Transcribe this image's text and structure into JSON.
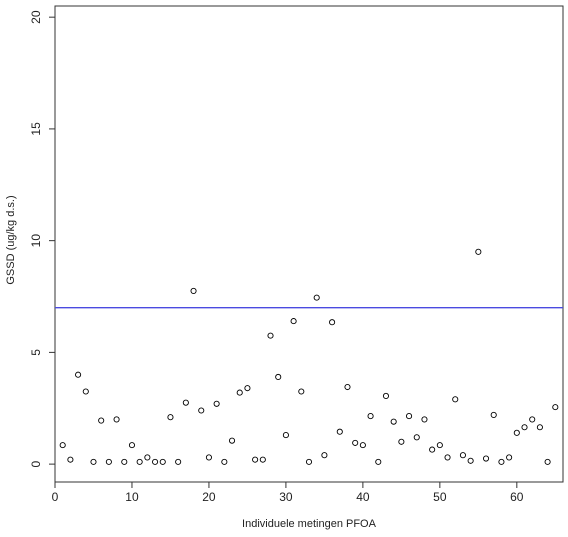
{
  "chart_data": {
    "type": "scatter",
    "xlabel": "Individuele metingen PFOA",
    "ylabel": "GSSD (ug/kg d.s.)",
    "xlim": [
      0,
      66
    ],
    "ylim": [
      -0.8,
      20.5
    ],
    "x_ticks": [
      0,
      10,
      20,
      30,
      40,
      50,
      60
    ],
    "y_ticks": [
      0,
      5,
      10,
      15,
      20
    ],
    "grid": false,
    "point_color": "#000000",
    "reference_line": {
      "y": 7.0,
      "color": "#4a4ae0"
    },
    "points": [
      {
        "x": 1,
        "y": 0.85
      },
      {
        "x": 2,
        "y": 0.2
      },
      {
        "x": 3,
        "y": 4.0
      },
      {
        "x": 4,
        "y": 3.25
      },
      {
        "x": 5,
        "y": 0.1
      },
      {
        "x": 6,
        "y": 1.95
      },
      {
        "x": 7,
        "y": 0.1
      },
      {
        "x": 8,
        "y": 2.0
      },
      {
        "x": 9,
        "y": 0.1
      },
      {
        "x": 10,
        "y": 0.85
      },
      {
        "x": 11,
        "y": 0.1
      },
      {
        "x": 12,
        "y": 0.3
      },
      {
        "x": 13,
        "y": 0.1
      },
      {
        "x": 14,
        "y": 0.1
      },
      {
        "x": 15,
        "y": 2.1
      },
      {
        "x": 16,
        "y": 0.1
      },
      {
        "x": 17,
        "y": 2.75
      },
      {
        "x": 18,
        "y": 7.75
      },
      {
        "x": 19,
        "y": 2.4
      },
      {
        "x": 20,
        "y": 0.3
      },
      {
        "x": 21,
        "y": 2.7
      },
      {
        "x": 22,
        "y": 0.1
      },
      {
        "x": 23,
        "y": 1.05
      },
      {
        "x": 24,
        "y": 3.2
      },
      {
        "x": 25,
        "y": 3.4
      },
      {
        "x": 26,
        "y": 0.2
      },
      {
        "x": 27,
        "y": 0.2
      },
      {
        "x": 28,
        "y": 5.75
      },
      {
        "x": 29,
        "y": 3.9
      },
      {
        "x": 30,
        "y": 1.3
      },
      {
        "x": 31,
        "y": 6.4
      },
      {
        "x": 32,
        "y": 3.25
      },
      {
        "x": 33,
        "y": 0.1
      },
      {
        "x": 34,
        "y": 7.45
      },
      {
        "x": 35,
        "y": 0.4
      },
      {
        "x": 36,
        "y": 6.35
      },
      {
        "x": 37,
        "y": 1.45
      },
      {
        "x": 38,
        "y": 3.45
      },
      {
        "x": 39,
        "y": 0.95
      },
      {
        "x": 40,
        "y": 0.85
      },
      {
        "x": 41,
        "y": 2.15
      },
      {
        "x": 42,
        "y": 0.1
      },
      {
        "x": 43,
        "y": 3.05
      },
      {
        "x": 44,
        "y": 1.9
      },
      {
        "x": 45,
        "y": 1.0
      },
      {
        "x": 46,
        "y": 2.15
      },
      {
        "x": 47,
        "y": 1.2
      },
      {
        "x": 48,
        "y": 2.0
      },
      {
        "x": 49,
        "y": 0.65
      },
      {
        "x": 50,
        "y": 0.85
      },
      {
        "x": 51,
        "y": 0.3
      },
      {
        "x": 52,
        "y": 2.9
      },
      {
        "x": 53,
        "y": 0.4
      },
      {
        "x": 54,
        "y": 0.15
      },
      {
        "x": 55,
        "y": 9.5
      },
      {
        "x": 56,
        "y": 0.25
      },
      {
        "x": 57,
        "y": 2.2
      },
      {
        "x": 58,
        "y": 0.1
      },
      {
        "x": 59,
        "y": 0.3
      },
      {
        "x": 60,
        "y": 1.4
      },
      {
        "x": 61,
        "y": 1.65
      },
      {
        "x": 62,
        "y": 2.0
      },
      {
        "x": 63,
        "y": 1.65
      },
      {
        "x": 64,
        "y": 0.1
      },
      {
        "x": 65,
        "y": 2.55
      }
    ]
  }
}
